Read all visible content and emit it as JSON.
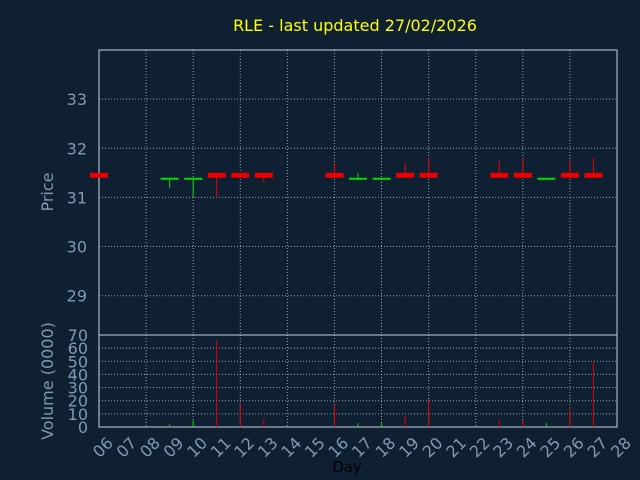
{
  "chart_data": {
    "type": "candlestick",
    "title": "RLE - last updated 27/02/2026",
    "xlabel": "Day",
    "price_panel": {
      "ylabel": "Price",
      "ylim": [
        28.2,
        34.0
      ],
      "yticks": [
        "29",
        "30",
        "31",
        "32",
        "33"
      ],
      "grid": true
    },
    "volume_panel": {
      "ylabel": "Volume (0000)",
      "ylim": [
        0,
        70
      ],
      "yticks": [
        "0",
        "10",
        "20",
        "30",
        "40",
        "50",
        "60",
        "70"
      ],
      "grid": true
    },
    "x_ticks": [
      "06",
      "07",
      "08",
      "09",
      "10",
      "11",
      "12",
      "13",
      "14",
      "15",
      "16",
      "17",
      "18",
      "19",
      "20",
      "21",
      "22",
      "23",
      "24",
      "25",
      "26",
      "27",
      "28"
    ],
    "colors": {
      "background": "#0f2033",
      "grid": "#c8d2dc",
      "up": "#00dd00",
      "down": "#ee0000",
      "title": "#ffff00",
      "axis_text": "#7f9ab4"
    },
    "candles": [
      {
        "day": "06",
        "open": 31.5,
        "close": 31.4,
        "high": 31.5,
        "low": 31.4,
        "volume": 0
      },
      {
        "day": "09",
        "open": 31.38,
        "close": 31.4,
        "high": 31.4,
        "low": 31.2,
        "volume": 2
      },
      {
        "day": "10",
        "open": 31.38,
        "close": 31.4,
        "high": 31.4,
        "low": 31.0,
        "volume": 5
      },
      {
        "day": "11",
        "open": 31.5,
        "close": 31.4,
        "high": 31.5,
        "low": 31.0,
        "volume": 66
      },
      {
        "day": "12",
        "open": 31.5,
        "close": 31.4,
        "high": 31.5,
        "low": 31.4,
        "volume": 18
      },
      {
        "day": "13",
        "open": 31.5,
        "close": 31.4,
        "high": 31.5,
        "low": 31.3,
        "volume": 6
      },
      {
        "day": "16",
        "open": 31.5,
        "close": 31.4,
        "high": 31.7,
        "low": 31.4,
        "volume": 17
      },
      {
        "day": "17",
        "open": 31.38,
        "close": 31.4,
        "high": 31.5,
        "low": 31.38,
        "volume": 3
      },
      {
        "day": "18",
        "open": 31.38,
        "close": 31.4,
        "high": 31.4,
        "low": 31.38,
        "volume": 3
      },
      {
        "day": "19",
        "open": 31.5,
        "close": 31.4,
        "high": 31.7,
        "low": 31.4,
        "volume": 8
      },
      {
        "day": "20",
        "open": 31.5,
        "close": 31.4,
        "high": 31.8,
        "low": 31.4,
        "volume": 21
      },
      {
        "day": "23",
        "open": 31.5,
        "close": 31.4,
        "high": 31.75,
        "low": 31.4,
        "volume": 5
      },
      {
        "day": "24",
        "open": 31.5,
        "close": 31.4,
        "high": 31.8,
        "low": 31.4,
        "volume": 5
      },
      {
        "day": "25",
        "open": 31.38,
        "close": 31.4,
        "high": 31.4,
        "low": 31.38,
        "volume": 3
      },
      {
        "day": "26",
        "open": 31.5,
        "close": 31.4,
        "high": 31.75,
        "low": 31.4,
        "volume": 15
      },
      {
        "day": "27",
        "open": 31.5,
        "close": 31.4,
        "high": 31.8,
        "low": 31.4,
        "volume": 50
      }
    ]
  }
}
